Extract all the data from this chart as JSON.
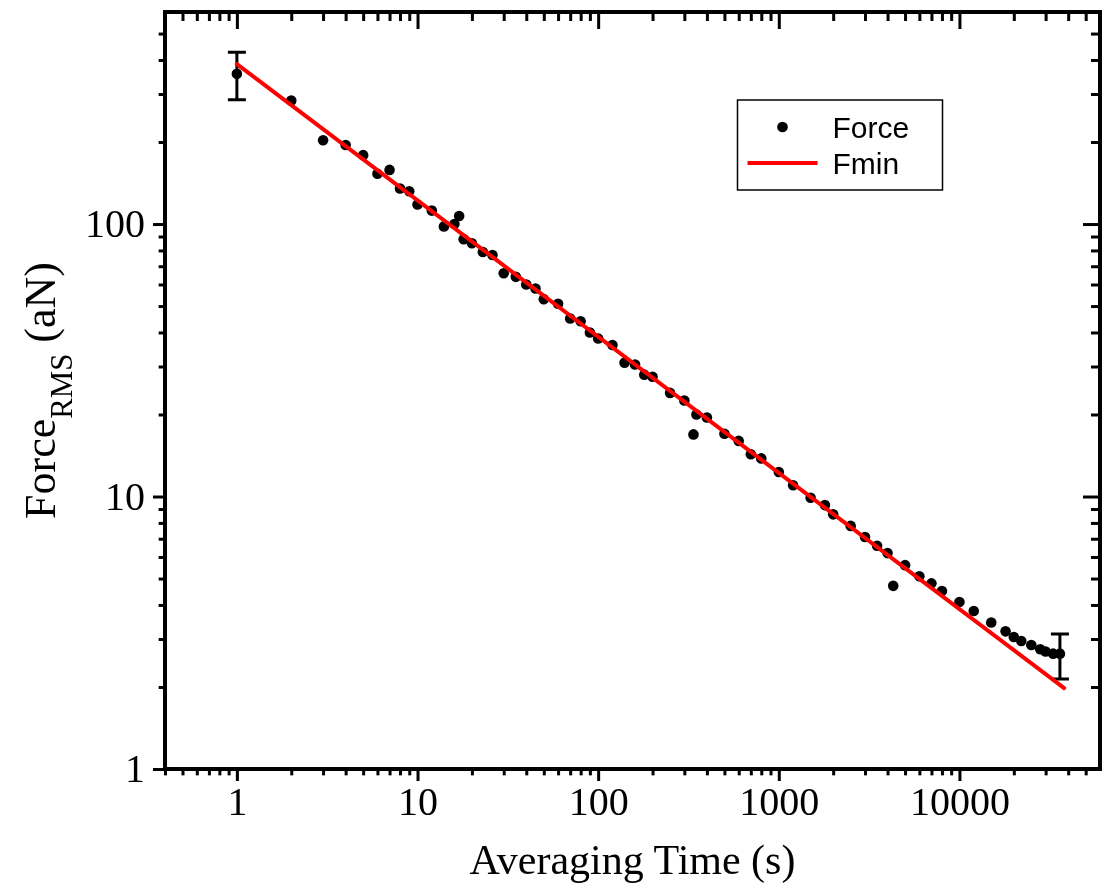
{
  "chart_data": {
    "type": "scatter",
    "xlabel": "Averaging Time (s)",
    "ylabel": "Force$_{RMS}$ (aN)",
    "log": "xy",
    "legend": "top right",
    "xlim": [
      0.4,
      60000
    ],
    "ylim": [
      1,
      600
    ],
    "xticks": [
      {
        "value": 0.4,
        "label": null
      },
      {
        "value": 0.5,
        "label": null
      },
      {
        "value": 0.6,
        "label": null
      },
      {
        "value": 0.7,
        "label": null
      },
      {
        "value": 0.8,
        "label": null
      },
      {
        "value": 0.9,
        "label": null
      },
      1,
      {
        "value": 2,
        "label": null
      },
      {
        "value": 3,
        "label": null
      },
      {
        "value": 4,
        "label": null
      },
      {
        "value": 5,
        "label": null
      },
      {
        "value": 6,
        "label": null
      },
      {
        "value": 7,
        "label": null
      },
      {
        "value": 8,
        "label": null
      },
      {
        "value": 9,
        "label": null
      },
      10,
      {
        "value": 20,
        "label": null
      },
      {
        "value": 30,
        "label": null
      },
      {
        "value": 40,
        "label": null
      },
      {
        "value": 50,
        "label": null
      },
      {
        "value": 60,
        "label": null
      },
      {
        "value": 70,
        "label": null
      },
      {
        "value": 80,
        "label": null
      },
      {
        "value": 90,
        "label": null
      },
      100,
      {
        "value": 200,
        "label": null
      },
      {
        "value": 300,
        "label": null
      },
      {
        "value": 400,
        "label": null
      },
      {
        "value": 500,
        "label": null
      },
      {
        "value": 600,
        "label": null
      },
      {
        "value": 700,
        "label": null
      },
      {
        "value": 800,
        "label": null
      },
      {
        "value": 900,
        "label": null
      },
      1000,
      {
        "value": 2000,
        "label": null
      },
      {
        "value": 3000,
        "label": null
      },
      {
        "value": 4000,
        "label": null
      },
      {
        "value": 5000,
        "label": null
      },
      {
        "value": 6000,
        "label": null
      },
      {
        "value": 7000,
        "label": null
      },
      {
        "value": 8000,
        "label": null
      },
      {
        "value": 9000,
        "label": null
      },
      10000,
      {
        "value": 20000,
        "label": null
      },
      {
        "value": 30000,
        "label": null
      },
      {
        "value": 40000,
        "label": null
      },
      {
        "value": 50000,
        "label": null
      }
    ],
    "yticks": [
      1,
      {
        "value": 2,
        "label": null
      },
      {
        "value": 3,
        "label": null
      },
      {
        "value": 4,
        "label": null
      },
      {
        "value": 5,
        "label": null
      },
      {
        "value": 6,
        "label": null
      },
      {
        "value": 7,
        "label": null
      },
      {
        "value": 8,
        "label": null
      },
      {
        "value": 9,
        "label": null
      },
      10,
      {
        "value": 20,
        "label": null
      },
      {
        "value": 30,
        "label": null
      },
      {
        "value": 40,
        "label": null
      },
      {
        "value": 50,
        "label": null
      },
      {
        "value": 60,
        "label": null
      },
      {
        "value": 70,
        "label": null
      },
      {
        "value": 80,
        "label": null
      },
      {
        "value": 90,
        "label": null
      },
      100,
      {
        "value": 200,
        "label": null
      },
      {
        "value": 300,
        "label": null
      },
      {
        "value": 400,
        "label": null
      },
      {
        "value": 500,
        "label": null
      }
    ],
    "series": [
      {
        "name": "Force",
        "type": "scatter",
        "marker": "circle",
        "color": "#000000",
        "x": [
          1,
          2,
          3,
          4,
          5,
          6,
          7,
          8,
          9,
          10,
          12,
          14,
          16,
          17,
          18,
          20,
          23,
          26,
          30,
          35,
          40,
          45,
          50,
          60,
          70,
          80,
          90,
          100,
          120,
          140,
          160,
          180,
          200,
          250,
          300,
          337,
          350,
          400,
          500,
          600,
          700,
          800,
          1000,
          1200,
          1500,
          1800,
          2000,
          2500,
          3000,
          3500,
          4000,
          4300,
          5000,
          6000,
          7000,
          8000,
          10000,
          12000,
          15000,
          18000,
          20000,
          22000,
          25000,
          28000,
          30000,
          33000,
          36000
        ],
        "values": [
          356,
          284,
          203,
          195,
          179,
          153,
          158,
          135,
          132,
          118,
          112,
          98,
          100,
          107,
          88,
          85,
          79,
          77,
          66,
          64,
          60,
          58,
          53,
          51,
          45,
          44,
          40,
          38,
          36,
          31,
          30.5,
          28,
          27.5,
          24,
          22.5,
          16.9,
          20,
          19.5,
          17,
          16,
          14.3,
          13.8,
          12.3,
          11,
          9.9,
          9.3,
          8.6,
          7.8,
          7.1,
          6.6,
          6.2,
          4.7,
          5.6,
          5.1,
          4.8,
          4.5,
          4.1,
          3.8,
          3.45,
          3.2,
          3.05,
          2.95,
          2.85,
          2.75,
          2.7,
          2.65,
          2.65
        ],
        "errors": [
          [
            286,
            427
          ],
          null,
          null,
          null,
          null,
          null,
          null,
          null,
          null,
          null,
          null,
          null,
          null,
          null,
          null,
          null,
          null,
          null,
          null,
          null,
          null,
          null,
          null,
          null,
          null,
          null,
          null,
          null,
          null,
          null,
          null,
          null,
          null,
          null,
          null,
          null,
          null,
          null,
          null,
          null,
          null,
          null,
          null,
          null,
          null,
          null,
          null,
          null,
          null,
          null,
          null,
          null,
          null,
          null,
          null,
          null,
          null,
          null,
          null,
          null,
          null,
          null,
          null,
          null,
          null,
          null,
          [
            2.14,
            3.13
          ]
        ]
      },
      {
        "name": "Fmin",
        "type": "line",
        "color": "#ff0000",
        "x": [
          1,
          38000
        ],
        "values": [
          386,
          1.98
        ]
      }
    ]
  }
}
